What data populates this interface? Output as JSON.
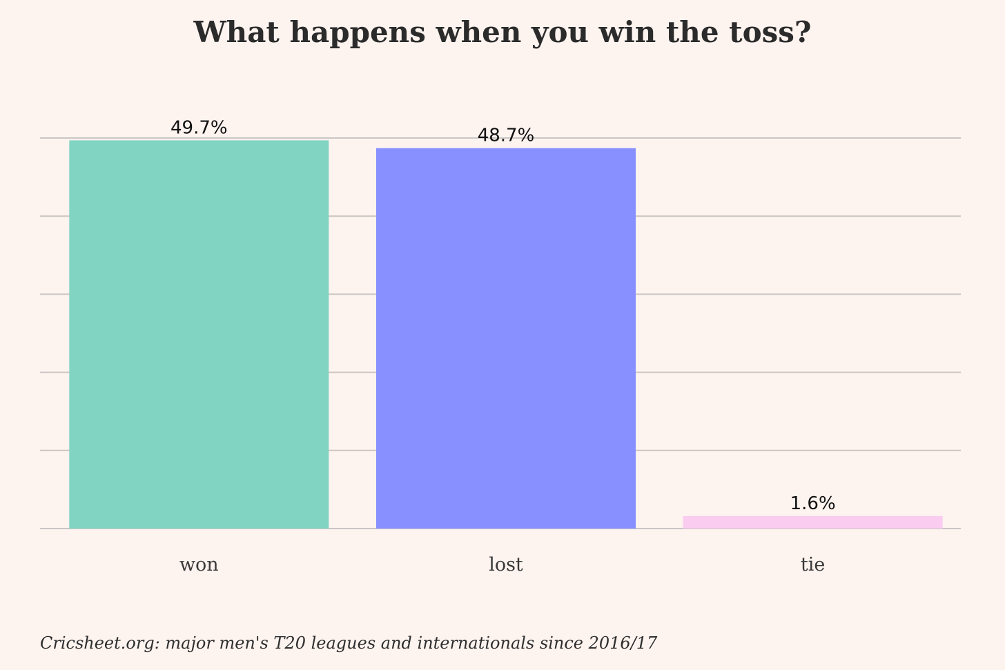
{
  "chart_data": {
    "type": "bar",
    "title": "What happens when you win the toss?",
    "categories": [
      "won",
      "lost",
      "tie"
    ],
    "values": [
      49.7,
      48.7,
      1.6
    ],
    "value_labels": [
      "49.7%",
      "48.7%",
      "1.6%"
    ],
    "colors": [
      "#82d4c2",
      "#8890ff",
      "#f9ccf0"
    ],
    "xlabel": "",
    "ylabel": "",
    "ylim": [
      0,
      50
    ],
    "ytick_values": [
      0,
      10,
      20,
      30,
      40,
      50
    ],
    "grid": true,
    "legend": "none",
    "source": "Cricsheet.org: major men's T20 leagues and internationals since 2016/17"
  }
}
